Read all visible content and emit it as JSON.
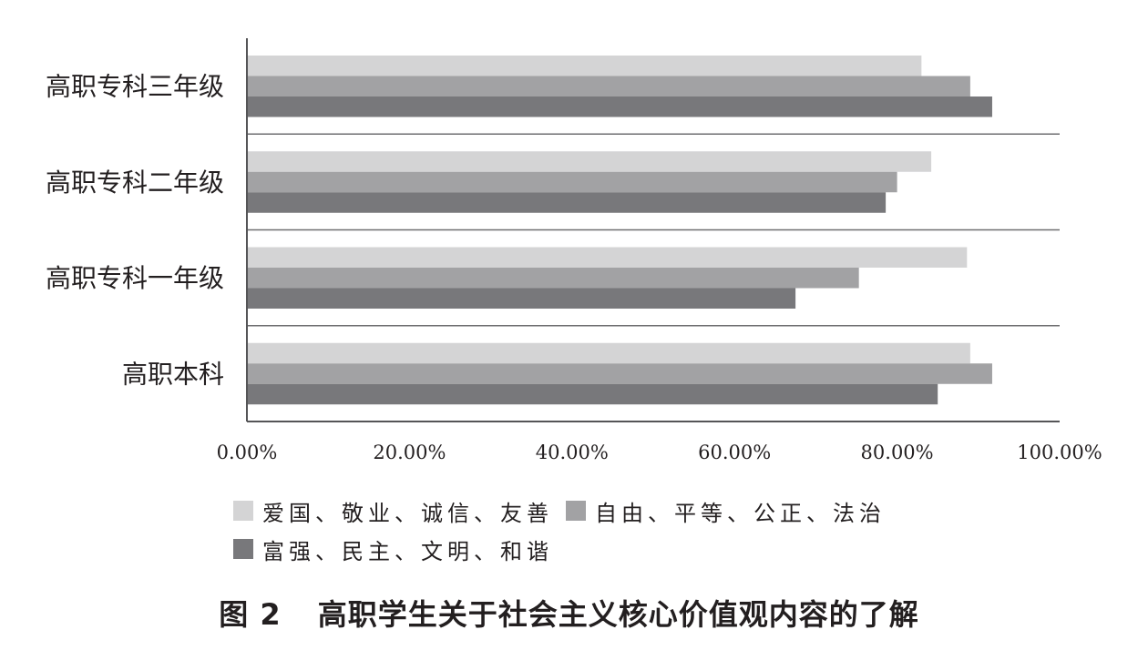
{
  "figure": {
    "number": "图 2",
    "caption": "高职学生关于社会主义核心价值观内容的了解"
  },
  "chart_data": {
    "type": "bar",
    "orientation": "horizontal",
    "categories": [
      "高职专科三年级",
      "高职专科二年级",
      "高职专科一年级",
      "高职本科"
    ],
    "series": [
      {
        "name": "爱国、敬业、诚信、友善",
        "color": "#d4d4d5",
        "values": [
          83.0,
          84.2,
          88.6,
          89.0
        ]
      },
      {
        "name": "自由、平等、公正、法治",
        "color": "#a2a2a4",
        "values": [
          89.0,
          80.0,
          75.3,
          91.7
        ]
      },
      {
        "name": "富强、民主、文明、和谐",
        "color": "#78787b",
        "values": [
          91.7,
          78.6,
          67.5,
          85.0
        ]
      }
    ],
    "xlim": [
      0,
      100
    ],
    "xticks": [
      "0.00%",
      "20.00%",
      "40.00%",
      "60.00%",
      "80.00%",
      "100.00%"
    ],
    "grid": false,
    "legend_position": "bottom"
  }
}
